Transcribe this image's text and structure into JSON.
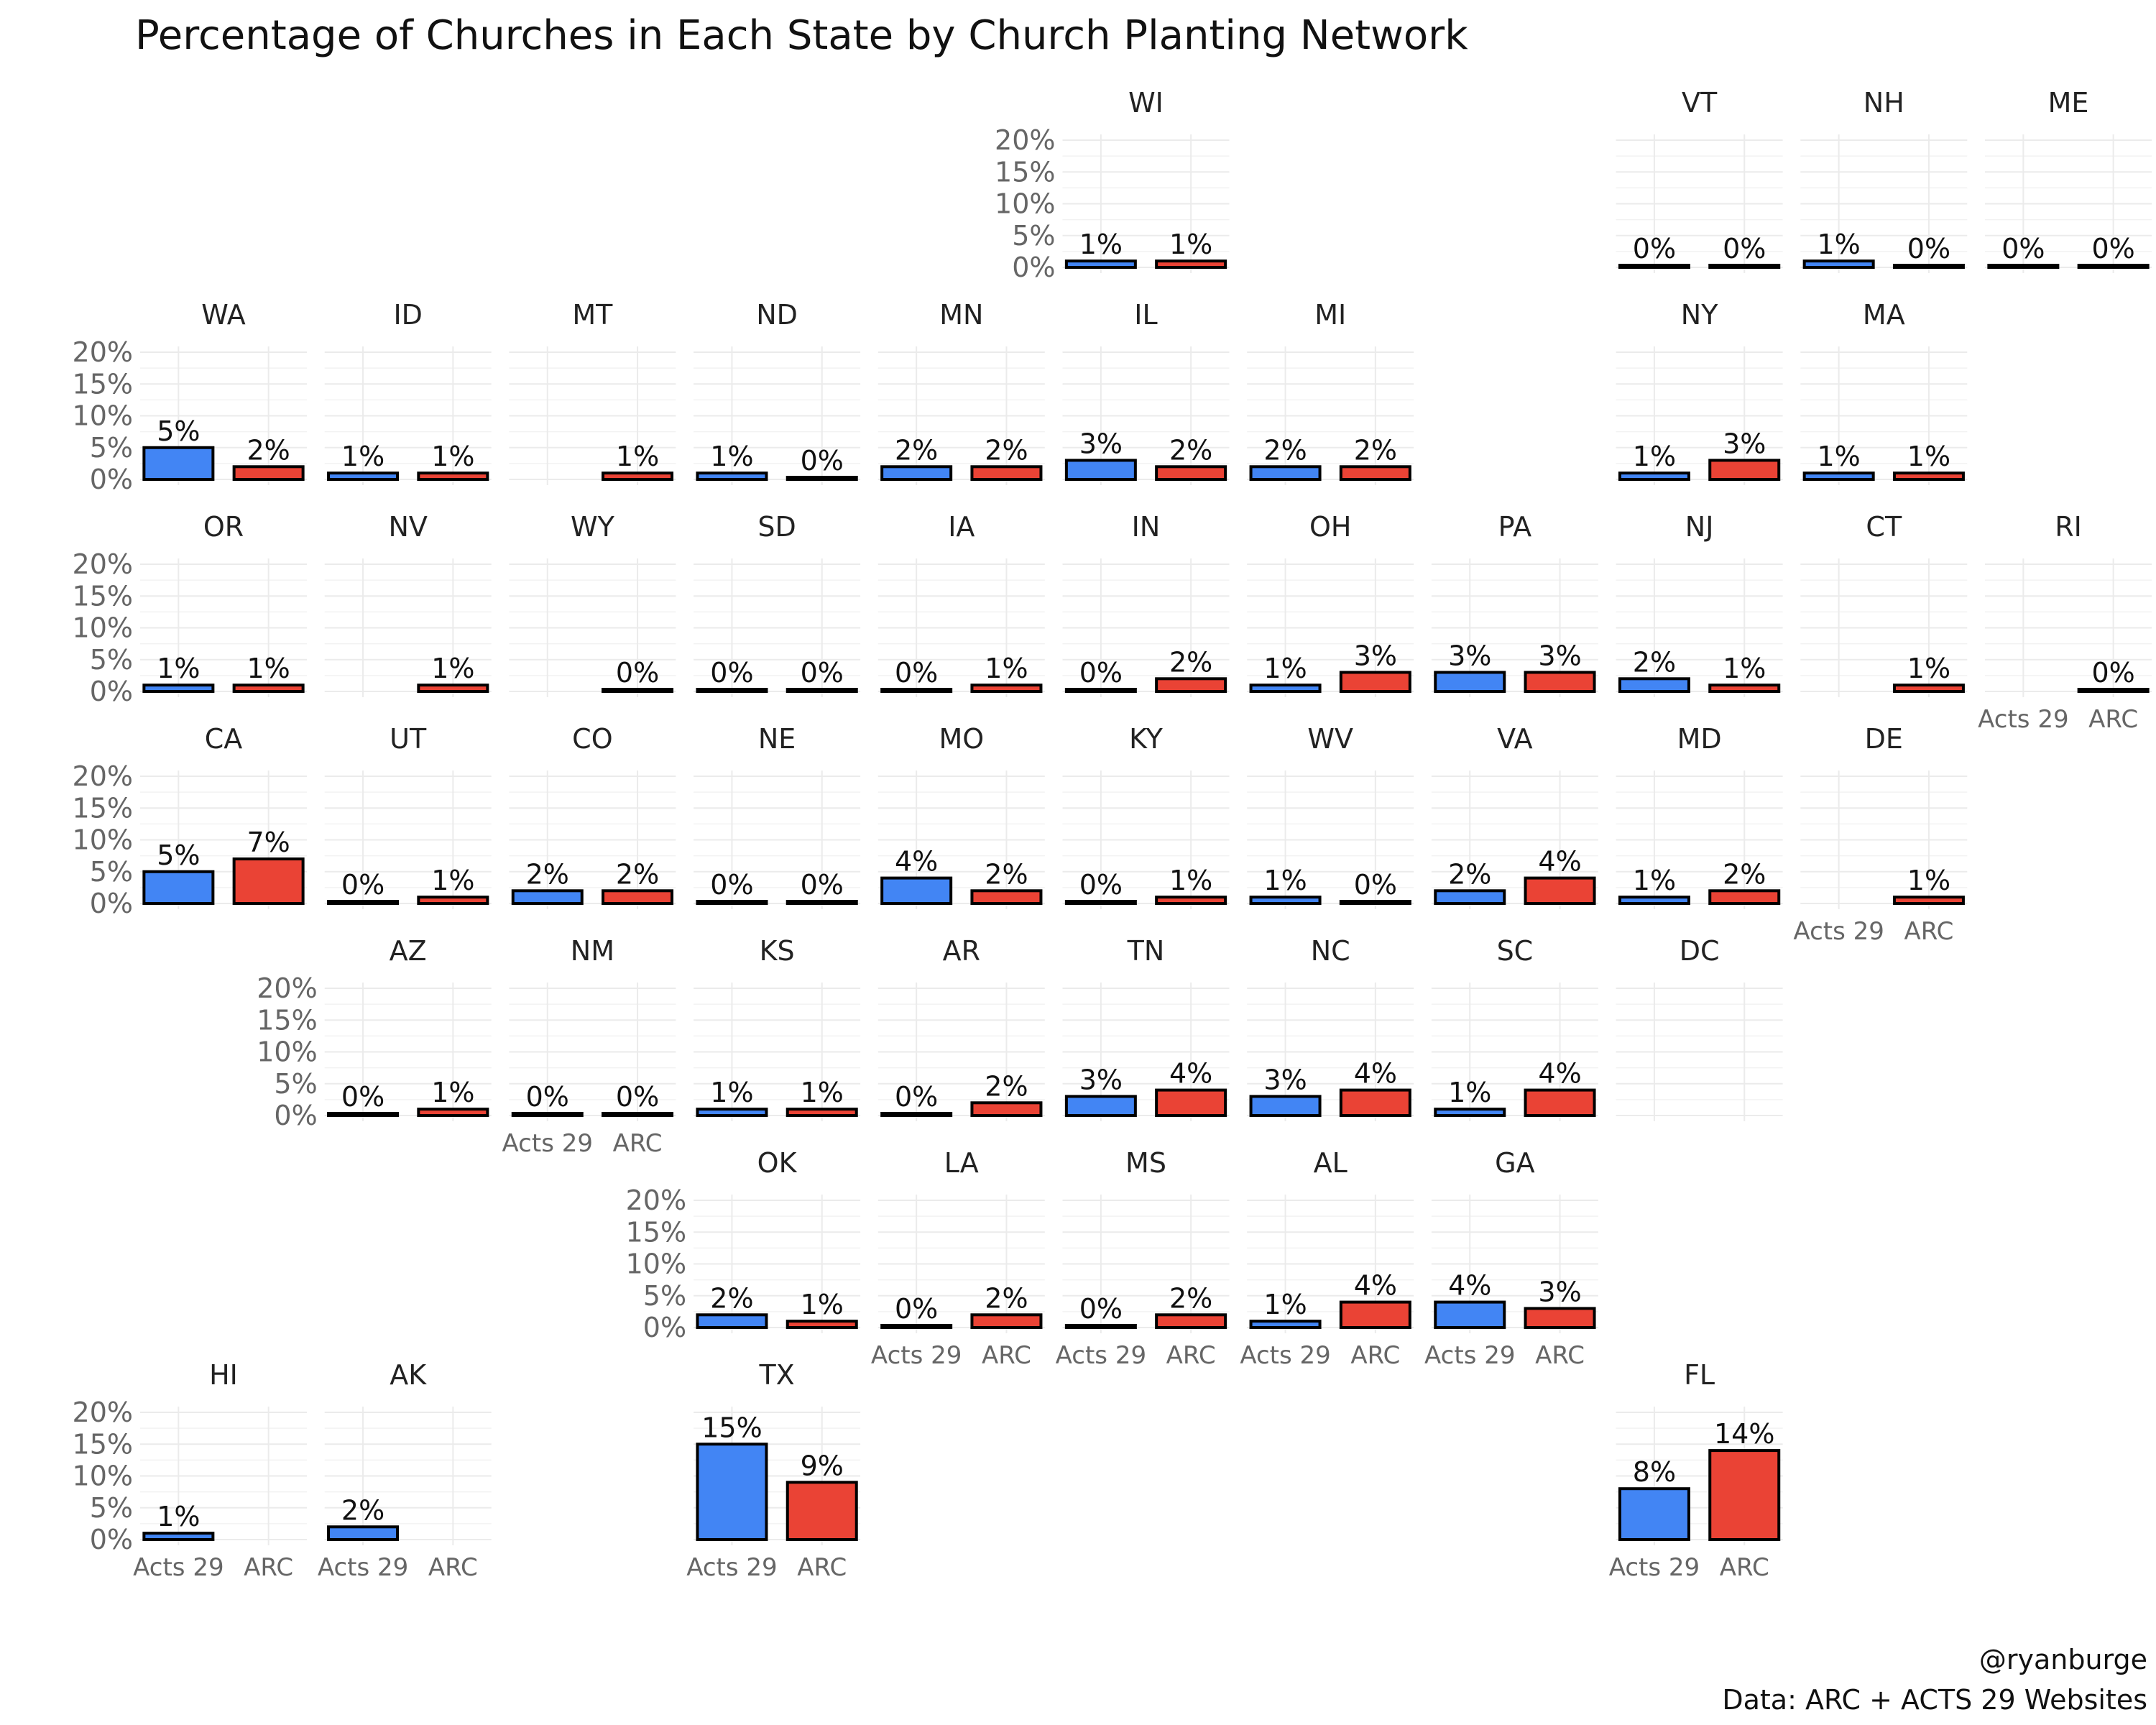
{
  "chart_data": {
    "type": "bar",
    "title": "Percentage of Churches in Each State by Church Planting Network",
    "categories": [
      "Acts 29",
      "ARC"
    ],
    "colors": {
      "Acts 29": "#4285f4",
      "ARC": "#ea4335"
    },
    "ylim": [
      0,
      20
    ],
    "yticks": [
      "20%",
      "15%",
      "10%",
      "5%",
      "0%"
    ],
    "ytick_values": [
      20,
      15,
      10,
      5,
      0
    ],
    "grid": true,
    "panels": [
      {
        "state": "WI",
        "row": 0,
        "col": 5,
        "values": [
          1,
          1
        ],
        "labels": [
          "1%",
          "1%"
        ]
      },
      {
        "state": "VT",
        "row": 0,
        "col": 8,
        "values": [
          0,
          0
        ],
        "labels": [
          "0%",
          "0%"
        ]
      },
      {
        "state": "NH",
        "row": 0,
        "col": 9,
        "values": [
          1,
          0
        ],
        "labels": [
          "1%",
          "0%"
        ]
      },
      {
        "state": "ME",
        "row": 0,
        "col": 10,
        "values": [
          0,
          0
        ],
        "labels": [
          "0%",
          "0%"
        ]
      },
      {
        "state": "WA",
        "row": 1,
        "col": 0,
        "values": [
          5,
          2
        ],
        "labels": [
          "5%",
          "2%"
        ]
      },
      {
        "state": "ID",
        "row": 1,
        "col": 1,
        "values": [
          1,
          1
        ],
        "labels": [
          "1%",
          "1%"
        ]
      },
      {
        "state": "MT",
        "row": 1,
        "col": 2,
        "values": [
          null,
          1
        ],
        "labels": [
          "",
          "1%"
        ]
      },
      {
        "state": "ND",
        "row": 1,
        "col": 3,
        "values": [
          1,
          0
        ],
        "labels": [
          "1%",
          "0%"
        ]
      },
      {
        "state": "MN",
        "row": 1,
        "col": 4,
        "values": [
          2,
          2
        ],
        "labels": [
          "2%",
          "2%"
        ]
      },
      {
        "state": "IL",
        "row": 1,
        "col": 5,
        "values": [
          3,
          2
        ],
        "labels": [
          "3%",
          "2%"
        ]
      },
      {
        "state": "MI",
        "row": 1,
        "col": 6,
        "values": [
          2,
          2
        ],
        "labels": [
          "2%",
          "2%"
        ]
      },
      {
        "state": "NY",
        "row": 1,
        "col": 8,
        "values": [
          1,
          3
        ],
        "labels": [
          "1%",
          "3%"
        ]
      },
      {
        "state": "MA",
        "row": 1,
        "col": 9,
        "values": [
          1,
          1
        ],
        "labels": [
          "1%",
          "1%"
        ]
      },
      {
        "state": "OR",
        "row": 2,
        "col": 0,
        "values": [
          1,
          1
        ],
        "labels": [
          "1%",
          "1%"
        ]
      },
      {
        "state": "NV",
        "row": 2,
        "col": 1,
        "values": [
          null,
          1
        ],
        "labels": [
          "",
          "1%"
        ]
      },
      {
        "state": "WY",
        "row": 2,
        "col": 2,
        "values": [
          null,
          0
        ],
        "labels": [
          "",
          "0%"
        ]
      },
      {
        "state": "SD",
        "row": 2,
        "col": 3,
        "values": [
          0,
          0
        ],
        "labels": [
          "0%",
          "0%"
        ]
      },
      {
        "state": "IA",
        "row": 2,
        "col": 4,
        "values": [
          0,
          1
        ],
        "labels": [
          "0%",
          "1%"
        ]
      },
      {
        "state": "IN",
        "row": 2,
        "col": 5,
        "values": [
          0,
          2
        ],
        "labels": [
          "0%",
          "2%"
        ]
      },
      {
        "state": "OH",
        "row": 2,
        "col": 6,
        "values": [
          1,
          3
        ],
        "labels": [
          "1%",
          "3%"
        ]
      },
      {
        "state": "PA",
        "row": 2,
        "col": 7,
        "values": [
          3,
          3
        ],
        "labels": [
          "3%",
          "3%"
        ]
      },
      {
        "state": "NJ",
        "row": 2,
        "col": 8,
        "values": [
          2,
          1
        ],
        "labels": [
          "2%",
          "1%"
        ]
      },
      {
        "state": "CT",
        "row": 2,
        "col": 9,
        "values": [
          null,
          1
        ],
        "labels": [
          "",
          "1%"
        ]
      },
      {
        "state": "RI",
        "row": 2,
        "col": 10,
        "values": [
          null,
          0
        ],
        "labels": [
          "",
          "0%"
        ]
      },
      {
        "state": "CA",
        "row": 3,
        "col": 0,
        "values": [
          5,
          7
        ],
        "labels": [
          "5%",
          "7%"
        ]
      },
      {
        "state": "UT",
        "row": 3,
        "col": 1,
        "values": [
          0,
          1
        ],
        "labels": [
          "0%",
          "1%"
        ]
      },
      {
        "state": "CO",
        "row": 3,
        "col": 2,
        "values": [
          2,
          2
        ],
        "labels": [
          "2%",
          "2%"
        ]
      },
      {
        "state": "NE",
        "row": 3,
        "col": 3,
        "values": [
          0,
          0
        ],
        "labels": [
          "0%",
          "0%"
        ]
      },
      {
        "state": "MO",
        "row": 3,
        "col": 4,
        "values": [
          4,
          2
        ],
        "labels": [
          "4%",
          "2%"
        ]
      },
      {
        "state": "KY",
        "row": 3,
        "col": 5,
        "values": [
          0,
          1
        ],
        "labels": [
          "0%",
          "1%"
        ]
      },
      {
        "state": "WV",
        "row": 3,
        "col": 6,
        "values": [
          1,
          0
        ],
        "labels": [
          "1%",
          "0%"
        ]
      },
      {
        "state": "VA",
        "row": 3,
        "col": 7,
        "values": [
          2,
          4
        ],
        "labels": [
          "2%",
          "4%"
        ]
      },
      {
        "state": "MD",
        "row": 3,
        "col": 8,
        "values": [
          1,
          2
        ],
        "labels": [
          "1%",
          "2%"
        ]
      },
      {
        "state": "DE",
        "row": 3,
        "col": 9,
        "values": [
          null,
          1
        ],
        "labels": [
          "",
          "1%"
        ]
      },
      {
        "state": "AZ",
        "row": 4,
        "col": 1,
        "values": [
          0,
          1
        ],
        "labels": [
          "0%",
          "1%"
        ]
      },
      {
        "state": "NM",
        "row": 4,
        "col": 2,
        "values": [
          0,
          0
        ],
        "labels": [
          "0%",
          "0%"
        ]
      },
      {
        "state": "KS",
        "row": 4,
        "col": 3,
        "values": [
          1,
          1
        ],
        "labels": [
          "1%",
          "1%"
        ]
      },
      {
        "state": "AR",
        "row": 4,
        "col": 4,
        "values": [
          0,
          2
        ],
        "labels": [
          "0%",
          "2%"
        ]
      },
      {
        "state": "TN",
        "row": 4,
        "col": 5,
        "values": [
          3,
          4
        ],
        "labels": [
          "3%",
          "4%"
        ]
      },
      {
        "state": "NC",
        "row": 4,
        "col": 6,
        "values": [
          3,
          4
        ],
        "labels": [
          "3%",
          "4%"
        ]
      },
      {
        "state": "SC",
        "row": 4,
        "col": 7,
        "values": [
          1,
          4
        ],
        "labels": [
          "1%",
          "4%"
        ]
      },
      {
        "state": "DC",
        "row": 4,
        "col": 8,
        "values": [
          null,
          null
        ],
        "labels": [
          "",
          ""
        ]
      },
      {
        "state": "OK",
        "row": 5,
        "col": 3,
        "values": [
          2,
          1
        ],
        "labels": [
          "2%",
          "1%"
        ]
      },
      {
        "state": "LA",
        "row": 5,
        "col": 4,
        "values": [
          0,
          2
        ],
        "labels": [
          "0%",
          "2%"
        ]
      },
      {
        "state": "MS",
        "row": 5,
        "col": 5,
        "values": [
          0,
          2
        ],
        "labels": [
          "0%",
          "2%"
        ]
      },
      {
        "state": "AL",
        "row": 5,
        "col": 6,
        "values": [
          1,
          4
        ],
        "labels": [
          "1%",
          "4%"
        ]
      },
      {
        "state": "GA",
        "row": 5,
        "col": 7,
        "values": [
          4,
          3
        ],
        "labels": [
          "4%",
          "3%"
        ]
      },
      {
        "state": "HI",
        "row": 6,
        "col": 0,
        "values": [
          1,
          null
        ],
        "labels": [
          "1%",
          ""
        ]
      },
      {
        "state": "AK",
        "row": 6,
        "col": 1,
        "values": [
          2,
          null
        ],
        "labels": [
          "2%",
          ""
        ]
      },
      {
        "state": "TX",
        "row": 6,
        "col": 3,
        "values": [
          15,
          9
        ],
        "labels": [
          "15%",
          "9%"
        ]
      },
      {
        "state": "FL",
        "row": 6,
        "col": 8,
        "values": [
          8,
          14
        ],
        "labels": [
          "8%",
          "14%"
        ]
      }
    ],
    "yaxis_panels": [
      "WI",
      "WA",
      "OR",
      "CA",
      "AZ",
      "OK",
      "HI"
    ],
    "xaxis_panels": [
      "RI",
      "DE",
      "NM",
      "LA",
      "MS",
      "AL",
      "GA",
      "HI",
      "AK",
      "TX",
      "FL"
    ]
  },
  "caption": {
    "handle": "@ryanburge",
    "source": "Data: ARC + ACTS 29 Websites"
  }
}
